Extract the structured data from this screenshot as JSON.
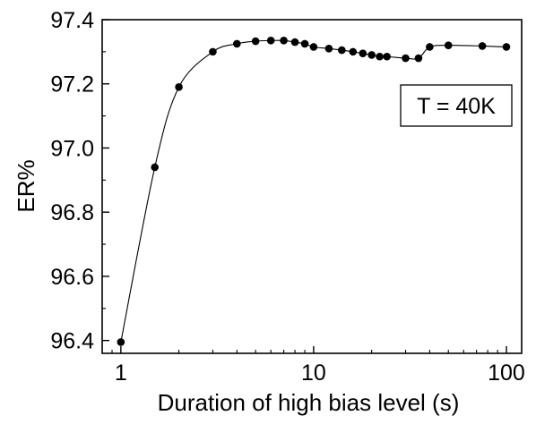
{
  "chart_data": {
    "type": "scatter",
    "title": "",
    "xlabel": "Duration of high bias level (s)",
    "ylabel": "ER%",
    "xscale": "log",
    "xlim": [
      0.8,
      120
    ],
    "ylim": [
      96.36,
      97.4
    ],
    "grid": false,
    "legend": "none",
    "x_ticks": [
      1,
      10,
      100
    ],
    "x_tick_labels": [
      "1",
      "10",
      "100"
    ],
    "y_ticks": [
      96.4,
      96.6,
      96.8,
      97.0,
      97.2,
      97.4
    ],
    "y_tick_labels": [
      "96.4",
      "96.6",
      "96.8",
      "97.0",
      "97.2",
      "97.4"
    ],
    "annotation": "T = 40K",
    "series": [
      {
        "marker": "circle",
        "color": "#000000",
        "smooth_line": true,
        "x": [
          1,
          1.5,
          2,
          3,
          4,
          5,
          6,
          7,
          8,
          9,
          10,
          12,
          14,
          16,
          18,
          20,
          22,
          24,
          30,
          35,
          40,
          50,
          75,
          100
        ],
        "y": [
          96.395,
          96.94,
          97.19,
          97.3,
          97.325,
          97.333,
          97.335,
          97.335,
          97.33,
          97.325,
          97.315,
          97.31,
          97.305,
          97.3,
          97.295,
          97.29,
          97.285,
          97.285,
          97.28,
          97.28,
          97.315,
          97.32,
          97.318,
          97.315
        ]
      }
    ]
  }
}
